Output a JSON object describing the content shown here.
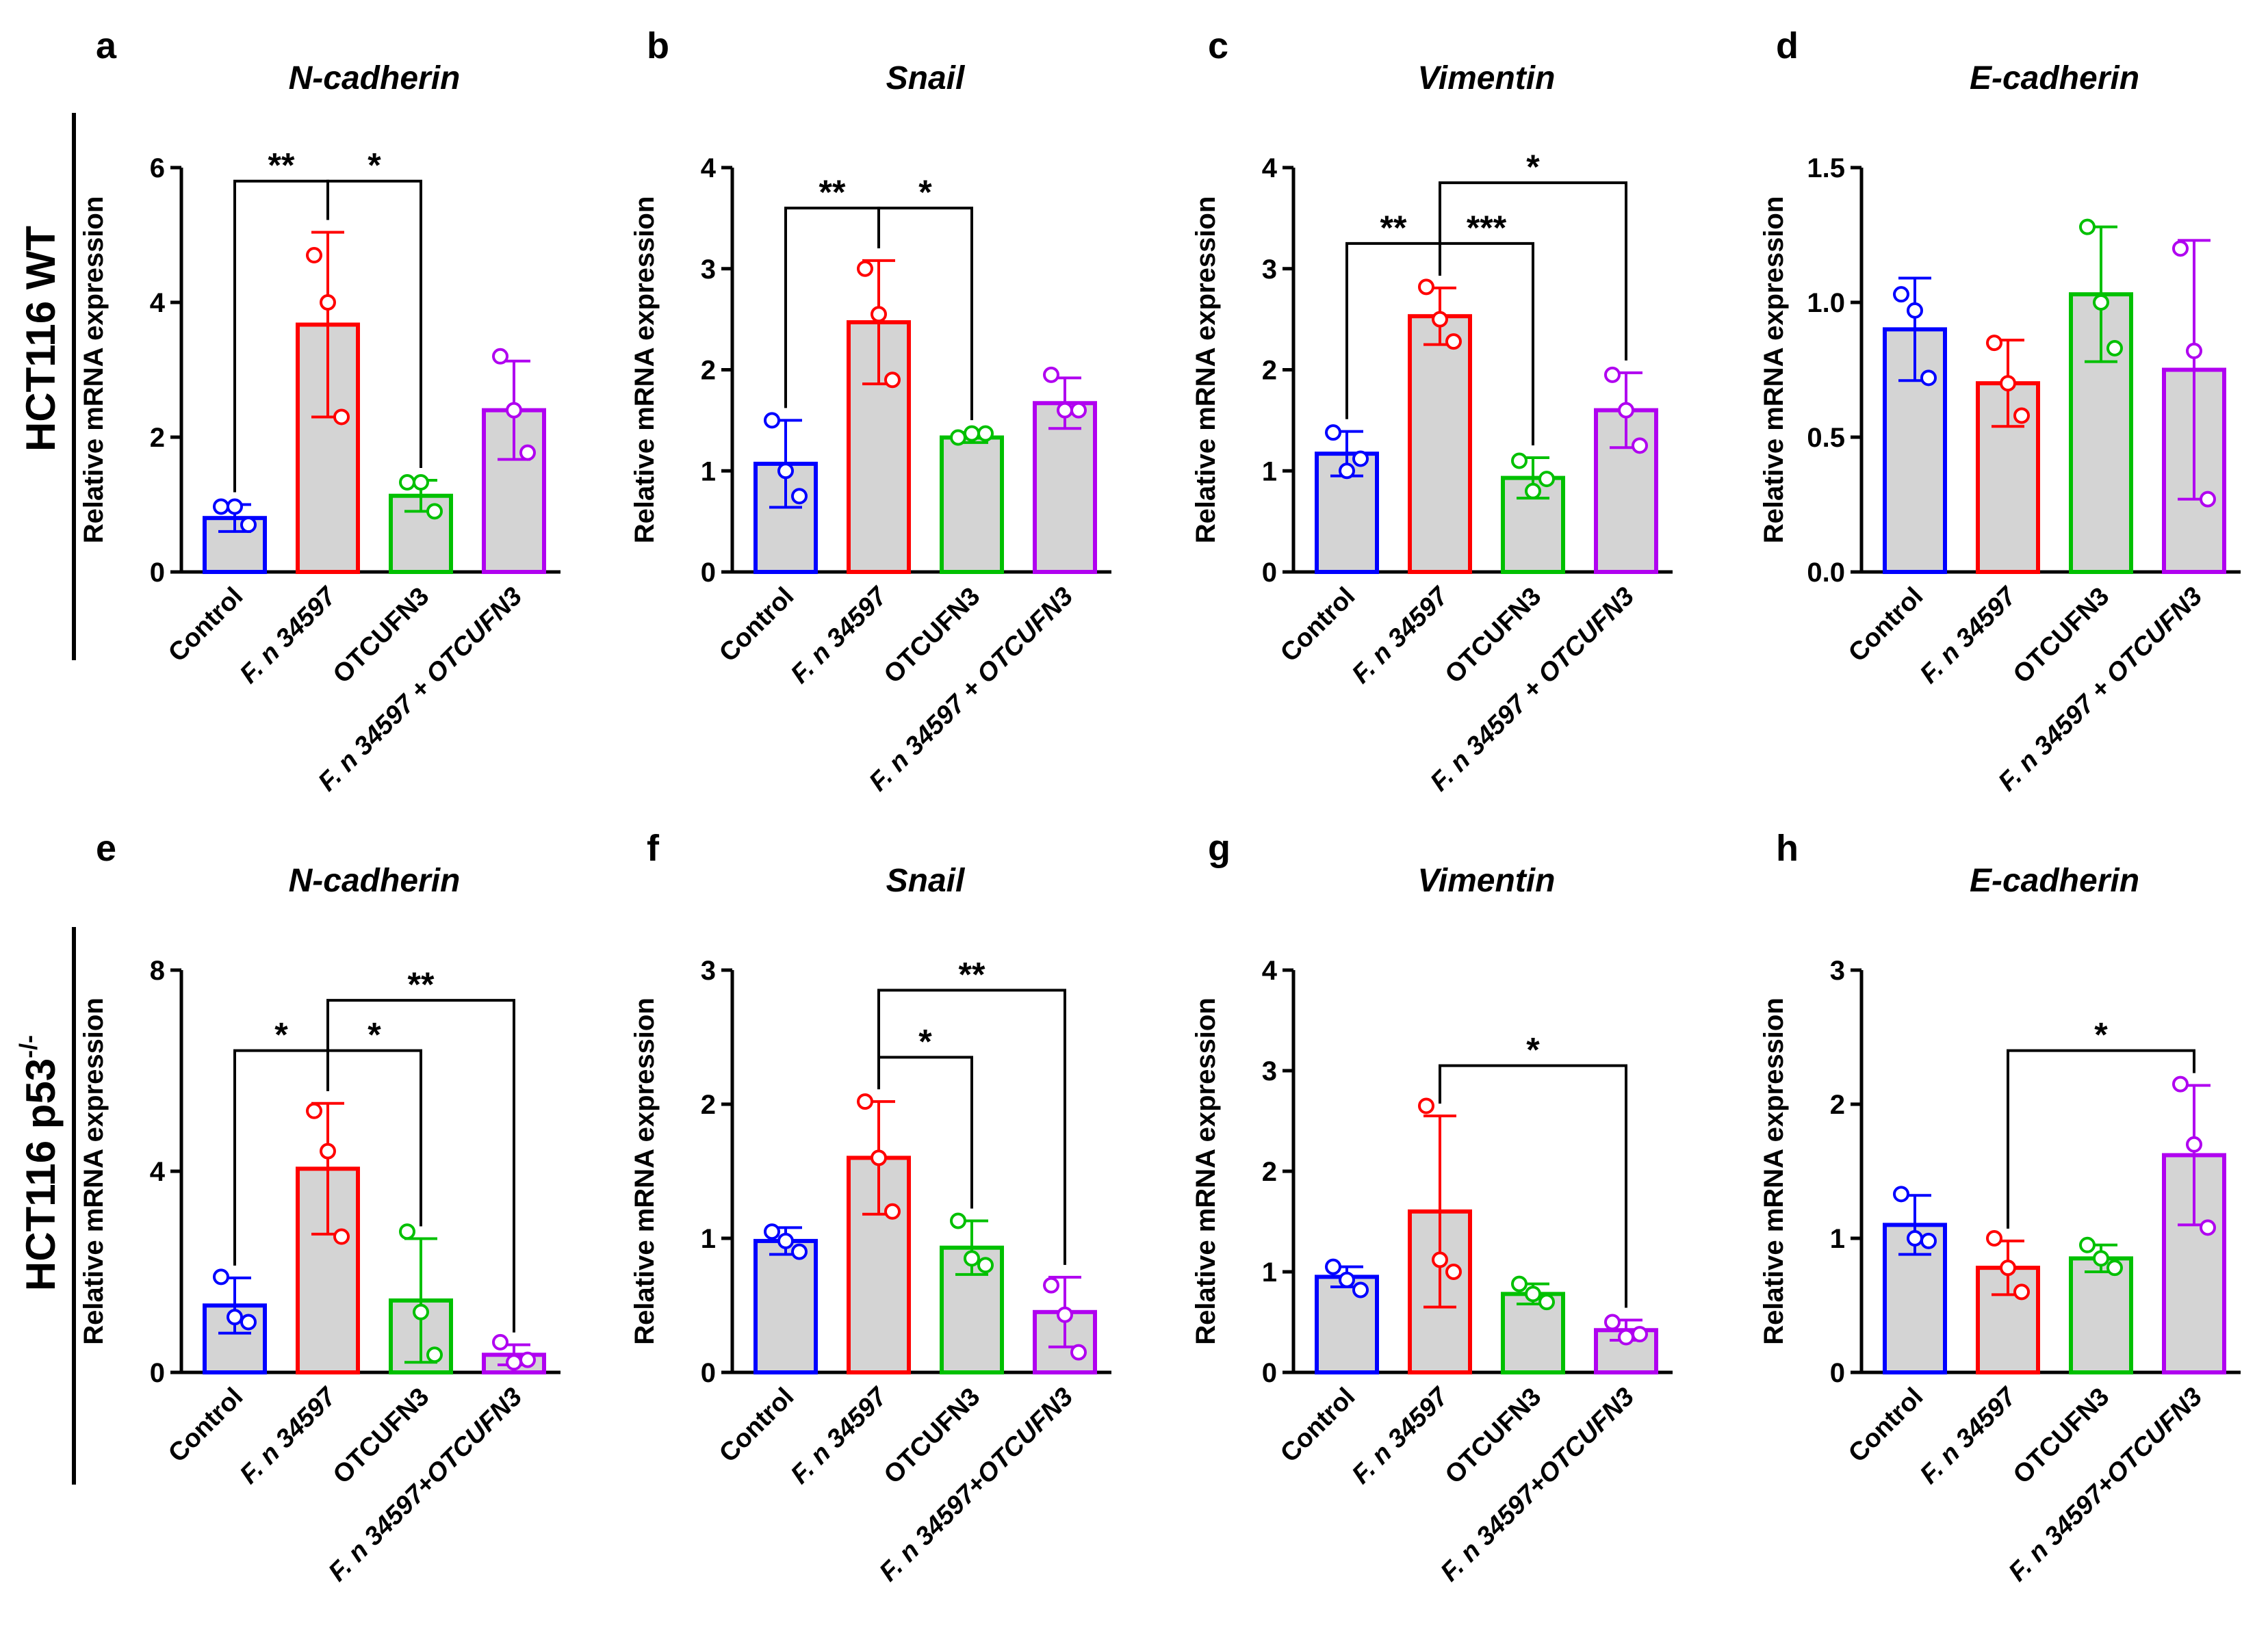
{
  "row_labels": [
    {
      "text": "HCT116 WT",
      "sup": ""
    },
    {
      "text": "HCT116 p53",
      "sup": "-/-"
    }
  ],
  "group_colors": [
    "#0000ff",
    "#ff0000",
    "#00c000",
    "#b000f0"
  ],
  "bar_fill": "#d4d4d4",
  "chart_data": [
    {
      "panel": "a",
      "title": "N-cadherin",
      "type": "bar",
      "ylabel": "Relative mRNA expression",
      "yticks": [
        0,
        2,
        4,
        6
      ],
      "yticklabels": [
        "0",
        "2",
        "4",
        "6"
      ],
      "ylim": [
        0,
        6
      ],
      "categories": [
        "Control",
        "F. n 34597",
        "OTCUFN3",
        "F. n 34597 + OTCUFN3"
      ],
      "values": [
        0.8,
        3.67,
        1.13,
        2.4
      ],
      "sd": [
        0.2,
        1.37,
        0.23,
        0.73
      ],
      "points": [
        [
          0.97,
          0.97,
          0.7
        ],
        [
          4.7,
          4.0,
          2.3
        ],
        [
          1.33,
          1.33,
          0.9
        ],
        [
          3.2,
          2.4,
          1.77
        ]
      ],
      "brackets": [
        {
          "from": 0,
          "to": 1,
          "y": 5.8,
          "label": "**"
        },
        {
          "from": 1,
          "to": 2,
          "y": 5.8,
          "label": "*"
        }
      ]
    },
    {
      "panel": "b",
      "title": "Snail",
      "type": "bar",
      "ylabel": "Relative mRNA expression",
      "yticks": [
        0,
        1,
        2,
        3,
        4
      ],
      "yticklabels": [
        "0",
        "1",
        "2",
        "3",
        "4"
      ],
      "ylim": [
        0,
        4
      ],
      "categories": [
        "Control",
        "F. n 34597",
        "OTCUFN3",
        "F. n 34597 + OTCUFN3"
      ],
      "values": [
        1.07,
        2.47,
        1.33,
        1.67
      ],
      "sd": [
        0.43,
        0.61,
        0.05,
        0.25
      ],
      "points": [
        [
          1.5,
          1.0,
          0.75
        ],
        [
          3.0,
          2.55,
          1.9
        ],
        [
          1.33,
          1.37,
          1.37
        ],
        [
          1.95,
          1.6,
          1.6
        ]
      ],
      "brackets": [
        {
          "from": 0,
          "to": 1,
          "y": 3.6,
          "label": "**"
        },
        {
          "from": 1,
          "to": 2,
          "y": 3.6,
          "label": "*"
        }
      ]
    },
    {
      "panel": "c",
      "title": "Vimentin",
      "type": "bar",
      "ylabel": "Relative mRNA expression",
      "yticks": [
        0,
        1,
        2,
        3,
        4
      ],
      "yticklabels": [
        "0",
        "1",
        "2",
        "3",
        "4"
      ],
      "ylim": [
        0,
        4
      ],
      "categories": [
        "Control",
        "F. n 34597",
        "OTCUFN3",
        "F. n 34597 + OTCUFN3"
      ],
      "values": [
        1.17,
        2.53,
        0.93,
        1.6
      ],
      "sd": [
        0.22,
        0.28,
        0.2,
        0.37
      ],
      "points": [
        [
          1.38,
          1.0,
          1.12
        ],
        [
          2.82,
          2.5,
          2.28
        ],
        [
          1.1,
          0.8,
          0.92
        ],
        [
          1.95,
          1.6,
          1.25
        ]
      ],
      "brackets": [
        {
          "from": 0,
          "to": 1,
          "y": 3.25,
          "label": "**"
        },
        {
          "from": 1,
          "to": 2,
          "y": 3.25,
          "label": "***"
        },
        {
          "from": 1,
          "to": 3,
          "y": 3.85,
          "label": "*"
        }
      ]
    },
    {
      "panel": "d",
      "title": "E-cadherin",
      "type": "bar",
      "ylabel": "Relative mRNA expression",
      "yticks": [
        0,
        0.5,
        1,
        1.5
      ],
      "yticklabels": [
        "0.0",
        "0.5",
        "1.0",
        "1.5"
      ],
      "ylim": [
        0,
        1.5
      ],
      "categories": [
        "Control",
        "F. n 34597",
        "OTCUFN3",
        "F. n 34597 + OTCUFN3"
      ],
      "values": [
        0.9,
        0.7,
        1.03,
        0.75
      ],
      "sd": [
        0.19,
        0.16,
        0.25,
        0.48
      ],
      "points": [
        [
          1.03,
          0.97,
          0.72
        ],
        [
          0.85,
          0.7,
          0.58
        ],
        [
          1.28,
          1.0,
          0.83
        ],
        [
          1.2,
          0.82,
          0.27
        ]
      ],
      "brackets": []
    },
    {
      "panel": "e",
      "title": "N-cadherin",
      "type": "bar",
      "ylabel": "Relative mRNA expression",
      "yticks": [
        0,
        4,
        8
      ],
      "yticklabels": [
        "0",
        "4",
        "8"
      ],
      "ylim": [
        0,
        8
      ],
      "categories": [
        "Control",
        "F. n 34597",
        "OTCUFN3",
        "F. n 34597+OTCUFN3"
      ],
      "values": [
        1.33,
        4.05,
        1.43,
        0.35
      ],
      "sd": [
        0.55,
        1.3,
        1.23,
        0.2
      ],
      "points": [
        [
          1.9,
          1.1,
          1.0
        ],
        [
          5.2,
          4.4,
          2.7
        ],
        [
          2.8,
          1.2,
          0.35
        ],
        [
          0.6,
          0.2,
          0.25
        ]
      ],
      "brackets": [
        {
          "from": 0,
          "to": 1,
          "y": 6.4,
          "label": "*"
        },
        {
          "from": 1,
          "to": 2,
          "y": 6.4,
          "label": "*"
        },
        {
          "from": 1,
          "to": 3,
          "y": 7.4,
          "label": "**"
        }
      ]
    },
    {
      "panel": "f",
      "title": "Snail",
      "type": "bar",
      "ylabel": "Relative mRNA expression",
      "yticks": [
        0,
        1,
        2,
        3
      ],
      "yticklabels": [
        "0",
        "1",
        "2",
        "3"
      ],
      "ylim": [
        0,
        3
      ],
      "categories": [
        "Control",
        "F. n 34597",
        "OTCUFN3",
        "F. n 34597+OTCUFN3"
      ],
      "values": [
        0.98,
        1.6,
        0.93,
        0.45
      ],
      "sd": [
        0.1,
        0.42,
        0.2,
        0.26
      ],
      "points": [
        [
          1.05,
          0.98,
          0.9
        ],
        [
          2.02,
          1.6,
          1.2
        ],
        [
          1.13,
          0.85,
          0.8
        ],
        [
          0.65,
          0.43,
          0.15
        ]
      ],
      "brackets": [
        {
          "from": 1,
          "to": 2,
          "y": 2.35,
          "label": "*"
        },
        {
          "from": 1,
          "to": 3,
          "y": 2.85,
          "label": "**"
        }
      ]
    },
    {
      "panel": "g",
      "title": "Vimentin",
      "type": "bar",
      "ylabel": "Relative mRNA expression",
      "yticks": [
        0,
        1,
        2,
        3,
        4
      ],
      "yticklabels": [
        "0",
        "1",
        "2",
        "3",
        "4"
      ],
      "ylim": [
        0,
        4
      ],
      "categories": [
        "Control",
        "F. n 34597",
        "OTCUFN3",
        "F. n 34597+OTCUFN3"
      ],
      "values": [
        0.95,
        1.6,
        0.78,
        0.42
      ],
      "sd": [
        0.1,
        0.95,
        0.1,
        0.1
      ],
      "points": [
        [
          1.05,
          0.92,
          0.82
        ],
        [
          2.65,
          1.12,
          1.0
        ],
        [
          0.88,
          0.78,
          0.7
        ],
        [
          0.5,
          0.35,
          0.38
        ]
      ],
      "brackets": [
        {
          "from": 1,
          "to": 3,
          "y": 3.05,
          "label": "*"
        }
      ]
    },
    {
      "panel": "h",
      "title": "E-cadherin",
      "type": "bar",
      "ylabel": "Relative mRNA expression",
      "yticks": [
        0,
        1,
        2,
        3
      ],
      "yticklabels": [
        "0",
        "1",
        "2",
        "3"
      ],
      "ylim": [
        0,
        3
      ],
      "categories": [
        "Control",
        "F. n 34597",
        "OTCUFN3",
        "F. n 34597+OTCUFN3"
      ],
      "values": [
        1.1,
        0.78,
        0.85,
        1.62
      ],
      "sd": [
        0.22,
        0.2,
        0.1,
        0.52
      ],
      "points": [
        [
          1.33,
          1.0,
          0.98
        ],
        [
          1.0,
          0.78,
          0.6
        ],
        [
          0.95,
          0.85,
          0.78
        ],
        [
          2.15,
          1.7,
          1.08
        ]
      ],
      "brackets": [
        {
          "from": 1,
          "to": 3,
          "y": 2.4,
          "label": "*"
        }
      ]
    }
  ]
}
